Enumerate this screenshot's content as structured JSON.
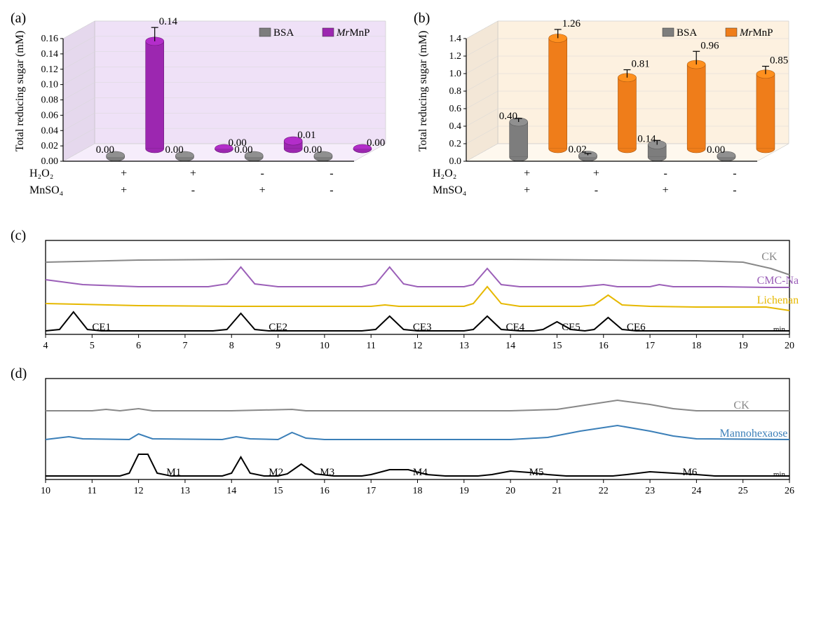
{
  "panelA": {
    "label": "(a)",
    "ylabel": "Total reducing sugar (mM)",
    "ylim": [
      0,
      0.16
    ],
    "ytick_step": 0.02,
    "yticks": [
      "0.00",
      "0.02",
      "0.04",
      "0.06",
      "0.08",
      "0.10",
      "0.12",
      "0.14",
      "0.16"
    ],
    "bg_color": "#efe1f7",
    "floor_color": "#f6edfb",
    "legend": [
      {
        "name": "BSA",
        "color": "#7d7d7d"
      },
      {
        "name": "MrMnP",
        "color": "#9c27b0",
        "italic_prefix": "Mr"
      }
    ],
    "conditions": [
      {
        "h2o2": "+",
        "mnso4": "+"
      },
      {
        "h2o2": "+",
        "mnso4": "-"
      },
      {
        "h2o2": "-",
        "mnso4": "+"
      },
      {
        "h2o2": "-",
        "mnso4": "-"
      }
    ],
    "cond_rows": [
      "H₂O₂",
      "MnSO₄"
    ],
    "groups": [
      {
        "bsa": 0.0,
        "mrmnp": 0.14,
        "bsa_label": "0.00",
        "mrmnp_label": "0.14",
        "mrmnp_err": 0.018
      },
      {
        "bsa": 0.0,
        "mrmnp": 0.0,
        "bsa_label": "0.00",
        "mrmnp_label": "0.00",
        "mrmnp_err": 0
      },
      {
        "bsa": 0.0,
        "mrmnp": 0.01,
        "bsa_label": "0.00",
        "mrmnp_label": "0.01",
        "mrmnp_err": 0
      },
      {
        "bsa": 0.0,
        "mrmnp": 0.0,
        "bsa_label": "0.00",
        "mrmnp_label": "0.00",
        "mrmnp_err": 0
      }
    ]
  },
  "panelB": {
    "label": "(b)",
    "ylabel": "Total reducing sugar (mM)",
    "ylim": [
      0,
      1.4
    ],
    "ytick_step": 0.2,
    "yticks": [
      "0.0",
      "0.2",
      "0.4",
      "0.6",
      "0.8",
      "1.0",
      "1.2",
      "1.4"
    ],
    "bg_color": "#fdf1e0",
    "floor_color": "#fef8ee",
    "legend": [
      {
        "name": "BSA",
        "color": "#7d7d7d"
      },
      {
        "name": "MrMnP",
        "color": "#ef7d1a",
        "italic_prefix": "Mr"
      }
    ],
    "conditions": [
      {
        "h2o2": "+",
        "mnso4": "+"
      },
      {
        "h2o2": "+",
        "mnso4": "-"
      },
      {
        "h2o2": "-",
        "mnso4": "+"
      },
      {
        "h2o2": "-",
        "mnso4": "-"
      }
    ],
    "cond_rows": [
      "H₂O₂",
      "MnSO₄"
    ],
    "groups": [
      {
        "bsa": 0.4,
        "mrmnp": 1.26,
        "bsa_label": "0.40",
        "mrmnp_label": "1.26",
        "bsa_err": 0.04,
        "mrmnp_err": 0.1
      },
      {
        "bsa": 0.02,
        "mrmnp": 0.81,
        "bsa_label": "0.02",
        "mrmnp_label": "0.81",
        "bsa_err": 0.02,
        "mrmnp_err": 0.09
      },
      {
        "bsa": 0.14,
        "mrmnp": 0.96,
        "bsa_label": "0.14",
        "mrmnp_label": "0.96",
        "bsa_err": 0.05,
        "mrmnp_err": 0.15
      },
      {
        "bsa": 0.0,
        "mrmnp": 0.85,
        "bsa_label": "0.00",
        "mrmnp_label": "0.85",
        "bsa_err": 0,
        "mrmnp_err": 0.09
      }
    ]
  },
  "panelC": {
    "label": "(c)",
    "xunit": "min",
    "xlim": [
      4,
      20
    ],
    "xtick_step": 1,
    "traces": [
      {
        "name": "CK",
        "color": "#888888",
        "baseline": 100,
        "label_x": 19.4,
        "points": [
          [
            4,
            3
          ],
          [
            6,
            6
          ],
          [
            8,
            7
          ],
          [
            10,
            7
          ],
          [
            12,
            7
          ],
          [
            14,
            7
          ],
          [
            16,
            6
          ],
          [
            18,
            5
          ],
          [
            19,
            3
          ],
          [
            19.6,
            -6
          ],
          [
            20,
            -15
          ]
        ]
      },
      {
        "name": "CMC-Na",
        "color": "#9b5fb8",
        "baseline": 66,
        "label_x": 19.3,
        "points": [
          [
            4,
            12
          ],
          [
            4.8,
            5
          ],
          [
            6,
            2
          ],
          [
            7.5,
            2
          ],
          [
            7.9,
            6
          ],
          [
            8.2,
            30
          ],
          [
            8.5,
            6
          ],
          [
            9,
            2
          ],
          [
            10.8,
            2
          ],
          [
            11.1,
            6
          ],
          [
            11.4,
            30
          ],
          [
            11.7,
            6
          ],
          [
            12,
            2
          ],
          [
            13,
            2
          ],
          [
            13.2,
            5
          ],
          [
            13.5,
            28
          ],
          [
            13.8,
            5
          ],
          [
            14.2,
            2
          ],
          [
            15.5,
            2
          ],
          [
            16,
            5
          ],
          [
            16.3,
            2
          ],
          [
            17,
            2
          ],
          [
            17.2,
            5
          ],
          [
            17.5,
            2
          ],
          [
            18.5,
            2
          ],
          [
            19.5,
            1
          ],
          [
            20,
            1
          ]
        ]
      },
      {
        "name": "Lichenan",
        "color": "#e6b800",
        "baseline": 38,
        "label_x": 19.3,
        "points": [
          [
            4,
            6
          ],
          [
            6,
            3
          ],
          [
            8,
            2
          ],
          [
            9,
            2
          ],
          [
            10,
            2
          ],
          [
            11,
            2
          ],
          [
            11.3,
            4
          ],
          [
            11.6,
            2
          ],
          [
            13,
            2
          ],
          [
            13.2,
            6
          ],
          [
            13.5,
            30
          ],
          [
            13.8,
            6
          ],
          [
            14.2,
            2
          ],
          [
            15.5,
            2
          ],
          [
            15.8,
            4
          ],
          [
            16.1,
            18
          ],
          [
            16.4,
            4
          ],
          [
            17,
            2
          ],
          [
            18,
            1
          ],
          [
            19.5,
            1
          ],
          [
            20,
            -4
          ]
        ]
      },
      {
        "name": "std",
        "color": "#000000",
        "baseline": 4,
        "label_x": null,
        "peaks": [
          "CE1",
          "CE2",
          "CE3",
          "CE4",
          "CE5",
          "CE6"
        ],
        "peak_x": [
          5.0,
          8.8,
          11.9,
          13.9,
          15.1,
          16.5
        ],
        "points": [
          [
            4,
            1
          ],
          [
            4.3,
            3
          ],
          [
            4.6,
            28
          ],
          [
            4.9,
            3
          ],
          [
            5.2,
            1
          ],
          [
            7.6,
            1
          ],
          [
            7.9,
            3
          ],
          [
            8.2,
            26
          ],
          [
            8.5,
            3
          ],
          [
            8.8,
            1
          ],
          [
            10.8,
            1
          ],
          [
            11.1,
            3
          ],
          [
            11.4,
            22
          ],
          [
            11.7,
            3
          ],
          [
            12,
            1
          ],
          [
            13,
            1
          ],
          [
            13.2,
            3
          ],
          [
            13.5,
            22
          ],
          [
            13.8,
            3
          ],
          [
            14.2,
            1
          ],
          [
            14.5,
            1
          ],
          [
            14.7,
            3
          ],
          [
            15,
            14
          ],
          [
            15.3,
            3
          ],
          [
            15.6,
            1
          ],
          [
            15.8,
            3
          ],
          [
            16.1,
            20
          ],
          [
            16.4,
            3
          ],
          [
            16.7,
            1
          ],
          [
            20,
            1
          ]
        ]
      }
    ]
  },
  "panelD": {
    "label": "(d)",
    "xunit": "min",
    "xlim": [
      10,
      26
    ],
    "xtick_step": 1,
    "traces": [
      {
        "name": "CK",
        "color": "#888888",
        "baseline": 95,
        "label_x": 24.8,
        "points": [
          [
            10,
            3
          ],
          [
            11,
            3
          ],
          [
            11.3,
            5
          ],
          [
            11.6,
            3
          ],
          [
            12,
            6
          ],
          [
            12.3,
            3
          ],
          [
            14,
            3
          ],
          [
            15.3,
            5
          ],
          [
            15.6,
            3
          ],
          [
            20,
            3
          ],
          [
            21,
            5
          ],
          [
            21.5,
            10
          ],
          [
            22.3,
            18
          ],
          [
            23,
            12
          ],
          [
            23.5,
            6
          ],
          [
            24,
            3
          ],
          [
            26,
            3
          ]
        ]
      },
      {
        "name": "Mannohexaose",
        "color": "#3b7fb8",
        "baseline": 55,
        "label_x": 24.5,
        "points": [
          [
            10,
            2
          ],
          [
            10.5,
            6
          ],
          [
            10.8,
            3
          ],
          [
            11.8,
            2
          ],
          [
            12,
            10
          ],
          [
            12.3,
            3
          ],
          [
            13.8,
            2
          ],
          [
            14.1,
            6
          ],
          [
            14.4,
            3
          ],
          [
            15,
            2
          ],
          [
            15.3,
            12
          ],
          [
            15.6,
            4
          ],
          [
            16,
            2
          ],
          [
            20,
            2
          ],
          [
            20.8,
            5
          ],
          [
            21.5,
            14
          ],
          [
            22.3,
            22
          ],
          [
            23,
            14
          ],
          [
            23.5,
            7
          ],
          [
            24,
            3
          ],
          [
            26,
            2
          ]
        ]
      },
      {
        "name": "std",
        "color": "#000000",
        "baseline": 4,
        "label_x": null,
        "peaks": [
          "M1",
          "M2",
          "M3",
          "M4",
          "M5",
          "M6"
        ],
        "peak_x": [
          12.6,
          14.8,
          15.9,
          17.9,
          20.4,
          23.7
        ],
        "points": [
          [
            10,
            1
          ],
          [
            11.6,
            1
          ],
          [
            11.8,
            5
          ],
          [
            12.0,
            32
          ],
          [
            12.2,
            32
          ],
          [
            12.4,
            5
          ],
          [
            12.7,
            1
          ],
          [
            13.8,
            1
          ],
          [
            14.0,
            5
          ],
          [
            14.2,
            28
          ],
          [
            14.4,
            5
          ],
          [
            14.7,
            1
          ],
          [
            15.0,
            1
          ],
          [
            15.2,
            4
          ],
          [
            15.5,
            18
          ],
          [
            15.8,
            4
          ],
          [
            16.2,
            1
          ],
          [
            16.8,
            1
          ],
          [
            17.0,
            3
          ],
          [
            17.4,
            10
          ],
          [
            17.8,
            10
          ],
          [
            18.2,
            3
          ],
          [
            18.6,
            1
          ],
          [
            19.3,
            1
          ],
          [
            19.6,
            3
          ],
          [
            20.0,
            8
          ],
          [
            20.4,
            6
          ],
          [
            20.8,
            3
          ],
          [
            21.2,
            1
          ],
          [
            22.2,
            1
          ],
          [
            22.5,
            3
          ],
          [
            23.0,
            7
          ],
          [
            23.5,
            5
          ],
          [
            24.0,
            3
          ],
          [
            24.4,
            1
          ],
          [
            26,
            1
          ]
        ]
      }
    ]
  },
  "colors": {
    "axis": "#000000",
    "grid": "#cccccc"
  }
}
